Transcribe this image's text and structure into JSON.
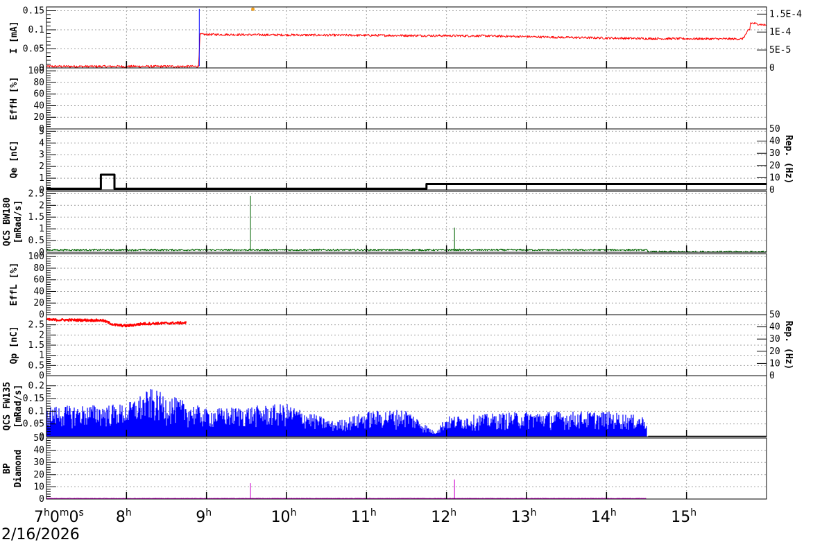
{
  "chart_data": {
    "type": "line",
    "date_label": "2/16/2026",
    "x_axis": {
      "range_hours": [
        7.0,
        16.0
      ],
      "ticks": [
        {
          "h": 7,
          "main": "7",
          "sup1": "h",
          "mid1": "0",
          "sup2": "m",
          "mid2": "0",
          "sup3": "s"
        },
        {
          "h": 8,
          "main": "8",
          "sup1": "h"
        },
        {
          "h": 9,
          "main": "9",
          "sup1": "h"
        },
        {
          "h": 10,
          "main": "10",
          "sup1": "h"
        },
        {
          "h": 11,
          "main": "11",
          "sup1": "h"
        },
        {
          "h": 12,
          "main": "12",
          "sup1": "h"
        },
        {
          "h": 13,
          "main": "13",
          "sup1": "h"
        },
        {
          "h": 14,
          "main": "14",
          "sup1": "h"
        },
        {
          "h": 15,
          "main": "15",
          "sup1": "h"
        }
      ]
    },
    "panels": [
      {
        "id": "current",
        "ylabel": "I [mA]",
        "ylim": [
          0,
          0.16
        ],
        "yticks": [
          {
            "v": 0,
            "t": "0"
          },
          {
            "v": 0.05,
            "t": "0.05"
          },
          {
            "v": 0.1,
            "t": "0.1"
          },
          {
            "v": 0.15,
            "t": "0.15"
          }
        ],
        "right_ylabel": "",
        "right_ylim": [
          0,
          0.00017
        ],
        "right_yticks": [
          {
            "v": 0,
            "t": "0"
          },
          {
            "v": 5e-05,
            "t": "5E-5"
          },
          {
            "v": 0.0001,
            "t": "1E-4"
          },
          {
            "v": 0.00015,
            "t": "1.5E-4"
          }
        ],
        "series": [
          {
            "color": "#ff0000",
            "noise": 0.003,
            "points": [
              [
                7.0,
                0.004
              ],
              [
                8.9,
                0.004
              ],
              [
                8.92,
                0.088
              ],
              [
                9.5,
                0.087
              ],
              [
                10.5,
                0.086
              ],
              [
                11.5,
                0.085
              ],
              [
                12.5,
                0.084
              ],
              [
                13.5,
                0.08
              ],
              [
                14.5,
                0.077
              ],
              [
                15.7,
                0.076
              ],
              [
                15.78,
                0.1
              ],
              [
                15.79,
                0.1
              ],
              [
                15.8,
                0.118
              ],
              [
                16.0,
                0.112
              ]
            ]
          },
          {
            "color": "#0000ff",
            "noise": 0,
            "points": [
              [
                8.91,
                0.005
              ],
              [
                8.91,
                0.155
              ]
            ]
          }
        ],
        "markers": [
          {
            "x": 9.58,
            "y": 0.154,
            "color": "#f0a020"
          }
        ]
      },
      {
        "id": "eff-h",
        "ylabel": "EffH [%]",
        "ylim": [
          0,
          105
        ],
        "yticks": [
          {
            "v": 0,
            "t": "0"
          },
          {
            "v": 20,
            "t": "20"
          },
          {
            "v": 40,
            "t": "40"
          },
          {
            "v": 60,
            "t": "60"
          },
          {
            "v": 80,
            "t": "80"
          },
          {
            "v": 100,
            "t": "100"
          }
        ],
        "series": []
      },
      {
        "id": "charge-e",
        "ylabel": "Qe [nC]",
        "ylim": [
          0,
          5.2
        ],
        "yticks": [
          {
            "v": 0,
            "t": "0"
          },
          {
            "v": 1,
            "t": "1"
          },
          {
            "v": 2,
            "t": "2"
          },
          {
            "v": 3,
            "t": "3"
          },
          {
            "v": 4,
            "t": "4"
          },
          {
            "v": 5,
            "t": "5"
          }
        ],
        "right_ylabel": "Rep. (Hz)",
        "right_ylim": [
          0,
          50
        ],
        "right_yticks": [
          {
            "v": 0,
            "t": "0"
          },
          {
            "v": 10,
            "t": "10"
          },
          {
            "v": 20,
            "t": "20"
          },
          {
            "v": 30,
            "t": "30"
          },
          {
            "v": 40,
            "t": "40"
          },
          {
            "v": 50,
            "t": "50"
          }
        ],
        "series": [
          {
            "color": "#000000",
            "noise": 0,
            "width": 3,
            "points": [
              [
                7.0,
                0.1
              ],
              [
                7.68,
                0.1
              ],
              [
                7.68,
                1.3
              ],
              [
                7.85,
                1.3
              ],
              [
                7.85,
                0.1
              ],
              [
                11.75,
                0.1
              ],
              [
                11.75,
                0.5
              ],
              [
                16.0,
                0.5
              ]
            ]
          }
        ]
      },
      {
        "id": "qcs-bw180",
        "ylabel": "QCS BW180",
        "ylabel2": "[mRad/s]",
        "ylim": [
          0,
          2.6
        ],
        "yticks": [
          {
            "v": 0,
            "t": "0"
          },
          {
            "v": 0.5,
            "t": "0.5"
          },
          {
            "v": 1,
            "t": "1"
          },
          {
            "v": 1.5,
            "t": "1.5"
          },
          {
            "v": 2,
            "t": "2"
          },
          {
            "v": 2.5,
            "t": "2.5"
          }
        ],
        "series": [
          {
            "color": "#006400",
            "noise": 0.04,
            "points": [
              [
                7.0,
                0.1
              ],
              [
                14.5,
                0.1
              ],
              [
                14.52,
                0.02
              ],
              [
                16.0,
                0.02
              ]
            ]
          },
          {
            "color": "#006400",
            "noise": 0,
            "points": [
              [
                9.55,
                0.1
              ],
              [
                9.55,
                2.4
              ]
            ]
          },
          {
            "color": "#006400",
            "noise": 0,
            "points": [
              [
                12.1,
                0.1
              ],
              [
                12.1,
                1.05
              ]
            ]
          }
        ]
      },
      {
        "id": "eff-l",
        "ylabel": "EffL [%]",
        "ylim": [
          0,
          105
        ],
        "yticks": [
          {
            "v": 0,
            "t": "0"
          },
          {
            "v": 20,
            "t": "20"
          },
          {
            "v": 40,
            "t": "40"
          },
          {
            "v": 60,
            "t": "60"
          },
          {
            "v": 80,
            "t": "80"
          },
          {
            "v": 100,
            "t": "100"
          }
        ],
        "series": []
      },
      {
        "id": "charge-p",
        "ylabel": "Qp [nC]",
        "ylim": [
          0,
          3.0
        ],
        "yticks": [
          {
            "v": 0,
            "t": "0"
          },
          {
            "v": 0.5,
            "t": "0.5"
          },
          {
            "v": 1,
            "t": "1"
          },
          {
            "v": 1.5,
            "t": "1.5"
          },
          {
            "v": 2,
            "t": "2"
          },
          {
            "v": 2.5,
            "t": "2.5"
          }
        ],
        "right_ylabel": "Rep. (Hz)",
        "right_ylim": [
          0,
          50
        ],
        "right_yticks": [
          {
            "v": 0,
            "t": "0"
          },
          {
            "v": 10,
            "t": "10"
          },
          {
            "v": 20,
            "t": "20"
          },
          {
            "v": 30,
            "t": "30"
          },
          {
            "v": 40,
            "t": "40"
          },
          {
            "v": 50,
            "t": "50"
          }
        ],
        "series": [
          {
            "color": "#ff0000",
            "noise": 0.06,
            "width": 2,
            "points": [
              [
                7.0,
                2.75
              ],
              [
                7.7,
                2.72
              ],
              [
                7.85,
                2.5
              ],
              [
                8.0,
                2.45
              ],
              [
                8.2,
                2.55
              ],
              [
                8.5,
                2.58
              ],
              [
                8.75,
                2.6
              ]
            ]
          }
        ]
      },
      {
        "id": "qcs-fw135",
        "ylabel": "QCS FW135",
        "ylabel2": "[mRad/s]",
        "ylim": [
          0,
          0.24
        ],
        "yticks": [
          {
            "v": 0,
            "t": "0"
          },
          {
            "v": 0.05,
            "t": "0.05"
          },
          {
            "v": 0.1,
            "t": "0.1"
          },
          {
            "v": 0.15,
            "t": "0.15"
          },
          {
            "v": 0.2,
            "t": "0.2"
          }
        ],
        "series": [
          {
            "color": "#0000ff",
            "type": "spiky",
            "points": [
              [
                7.0,
                0.12
              ],
              [
                8.0,
                0.13
              ],
              [
                8.3,
                0.19
              ],
              [
                9.0,
                0.11
              ],
              [
                10.0,
                0.13
              ],
              [
                10.6,
                0.06
              ],
              [
                11.0,
                0.1
              ],
              [
                11.5,
                0.11
              ],
              [
                11.85,
                0.02
              ],
              [
                12.0,
                0.08
              ],
              [
                13.0,
                0.1
              ],
              [
                14.0,
                0.1
              ],
              [
                14.5,
                0.08
              ]
            ]
          },
          {
            "color": "#000000",
            "noise": 0,
            "points": [
              [
                14.52,
                0.002
              ],
              [
                16.0,
                0.002
              ]
            ]
          }
        ]
      },
      {
        "id": "bp-diamond",
        "ylabel": "BP",
        "ylabel2": "Diamond",
        "ylim": [
          0,
          50
        ],
        "yticks": [
          {
            "v": 0,
            "t": "0"
          },
          {
            "v": 10,
            "t": "10"
          },
          {
            "v": 20,
            "t": "20"
          },
          {
            "v": 30,
            "t": "30"
          },
          {
            "v": 40,
            "t": "40"
          },
          {
            "v": 50,
            "t": "50"
          }
        ],
        "series": [
          {
            "color": "#cc00cc",
            "noise": 0.2,
            "points": [
              [
                7.0,
                0.5
              ],
              [
                14.5,
                0.5
              ]
            ]
          },
          {
            "color": "#cc00cc",
            "noise": 0,
            "points": [
              [
                9.55,
                0.5
              ],
              [
                9.55,
                13
              ]
            ]
          },
          {
            "color": "#cc00cc",
            "noise": 0,
            "points": [
              [
                12.1,
                0.5
              ],
              [
                12.1,
                16
              ]
            ]
          }
        ]
      }
    ]
  }
}
